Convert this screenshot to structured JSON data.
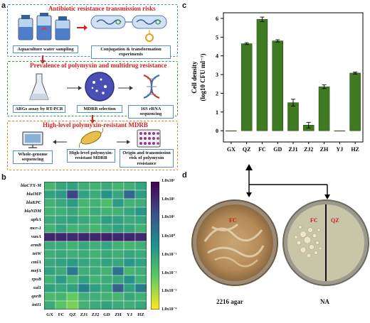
{
  "panels": {
    "a": "a",
    "b": "b",
    "c": "c",
    "d": "d"
  },
  "panel_a": {
    "section1_title": "Antibiotic resistance transmission risks",
    "section1_caption_left": "Aquaculture water sampling",
    "section1_caption_right": "Conjugation & transformation experiments",
    "section2_title": "Prevalence of polymyxin and multidrug resistance",
    "section2_caption_1": "ARGs assay by RT-PCR",
    "section2_caption_2": "MDRB selection",
    "section2_caption_3": "16S rRNA sequencing",
    "section3_title": "High-level polymyxin-resistant MDRB",
    "section3_caption_1": "Whole-genome sequencing",
    "section3_caption_2": "High-level polymyxin-resistant MDRB",
    "section3_caption_3": "Origin and transmission risk of polymyxin resistance",
    "colors": {
      "blue_box": "#4f86c6",
      "green_box": "#3a9a3a",
      "orange_box": "#e08a2a",
      "title_red": "#d81e1e"
    }
  },
  "heatmap": {
    "rows": [
      "blaCTX-M",
      "blaIMP",
      "blaKPC",
      "blaNDM",
      "aphA",
      "mcr-1",
      "vanA",
      "ermB",
      "tetW",
      "cmlA",
      "mefA",
      "rpoB",
      "sul1",
      "qnrB",
      "intI1"
    ],
    "cols": [
      "GX",
      "FC",
      "QZ",
      "ZJ1",
      "ZJ2",
      "GD",
      "ZH",
      "YJ",
      "HZ"
    ],
    "values": [
      [
        -1.6,
        -1.2,
        -1.0,
        -1.4,
        -1.5,
        -1.3,
        -1.6,
        -1.4,
        -1.1
      ],
      [
        -1.0,
        -0.8,
        1.5,
        -1.0,
        -1.3,
        -0.6,
        -1.2,
        0.6,
        -0.9
      ],
      [
        -1.5,
        -1.2,
        -0.8,
        -1.6,
        -1.5,
        -1.8,
        -0.8,
        -1.5,
        -1.4
      ],
      [
        -1.5,
        -1.4,
        -1.2,
        -1.6,
        -1.3,
        -1.5,
        -1.5,
        -1.1,
        -0.7
      ],
      [
        -1.3,
        -1.1,
        -1.0,
        -1.2,
        -1.4,
        -0.9,
        -1.0,
        -1.3,
        -1.1
      ],
      [
        -1.5,
        -1.1,
        -1.5,
        -1.4,
        -1.6,
        -1.3,
        -1.0,
        -1.2,
        -1.5
      ],
      [
        2.2,
        2.2,
        2.1,
        2.2,
        2.2,
        2.3,
        2.2,
        2.2,
        2.1
      ],
      [
        -1.3,
        -1.3,
        -1.5,
        -1.2,
        -1.4,
        -1.1,
        -1.5,
        -1.6,
        -1.4
      ],
      [
        -1.4,
        -1.2,
        -1.4,
        -1.3,
        -1.5,
        -1.2,
        -1.4,
        -1.1,
        -1.3
      ],
      [
        -1.2,
        -1.0,
        -0.8,
        -1.1,
        -1.3,
        -1.0,
        -1.2,
        -0.7,
        -1.0
      ],
      [
        -1.0,
        -1.3,
        0.2,
        -1.4,
        -1.3,
        -1.5,
        0.4,
        -1.6,
        -1.4
      ],
      [
        -1.5,
        -0.8,
        -1.6,
        -1.0,
        -1.5,
        -1.3,
        -1.2,
        -0.6,
        -1.4
      ],
      [
        -1.0,
        -1.2,
        -1.0,
        0.0,
        -0.9,
        -1.2,
        0.8,
        -1.0,
        0.1
      ],
      [
        -1.7,
        -1.6,
        -2.3,
        -1.4,
        -1.4,
        -1.5,
        -1.6,
        -1.2,
        -1.5
      ],
      [
        -1.3,
        -2.1,
        -2.6,
        -1.5,
        -1.3,
        -1.0,
        -1.3,
        -1.4,
        -1.2
      ]
    ],
    "colorbar_ticks": [
      "1.0x10³",
      "1.0x10²",
      "1.0x10¹",
      "1.0x10⁰",
      "1.0x10⁻¹",
      "1.0x10⁻²",
      "1.0x10⁻³",
      "1.0x10⁻⁴"
    ]
  },
  "chart_data": {
    "type": "bar",
    "categories": [
      "GX",
      "QZ",
      "FC",
      "GD",
      "ZJ1",
      "ZJ2",
      "ZH",
      "YJ",
      "HZ"
    ],
    "values": [
      0,
      4.65,
      5.95,
      4.8,
      1.5,
      0.3,
      2.35,
      0,
      3.08
    ],
    "errors": [
      0,
      0.05,
      0.12,
      0.06,
      0.18,
      0.15,
      0.1,
      0,
      0.05
    ],
    "ylabel_line1": "Cell density",
    "ylabel_line2": "(log10 CFU ml⁻¹)",
    "ylim": [
      -0.6,
      6.3
    ],
    "yticks": [
      0,
      1,
      2,
      3,
      4,
      5,
      6
    ],
    "bar_color": "#3f7a22",
    "grid": false
  },
  "panel_d": {
    "dish_left_label": "FC",
    "dish_right_label_left": "FC",
    "dish_right_label_right": "QZ",
    "caption_left": "2216 agar",
    "caption_right": "NA"
  }
}
